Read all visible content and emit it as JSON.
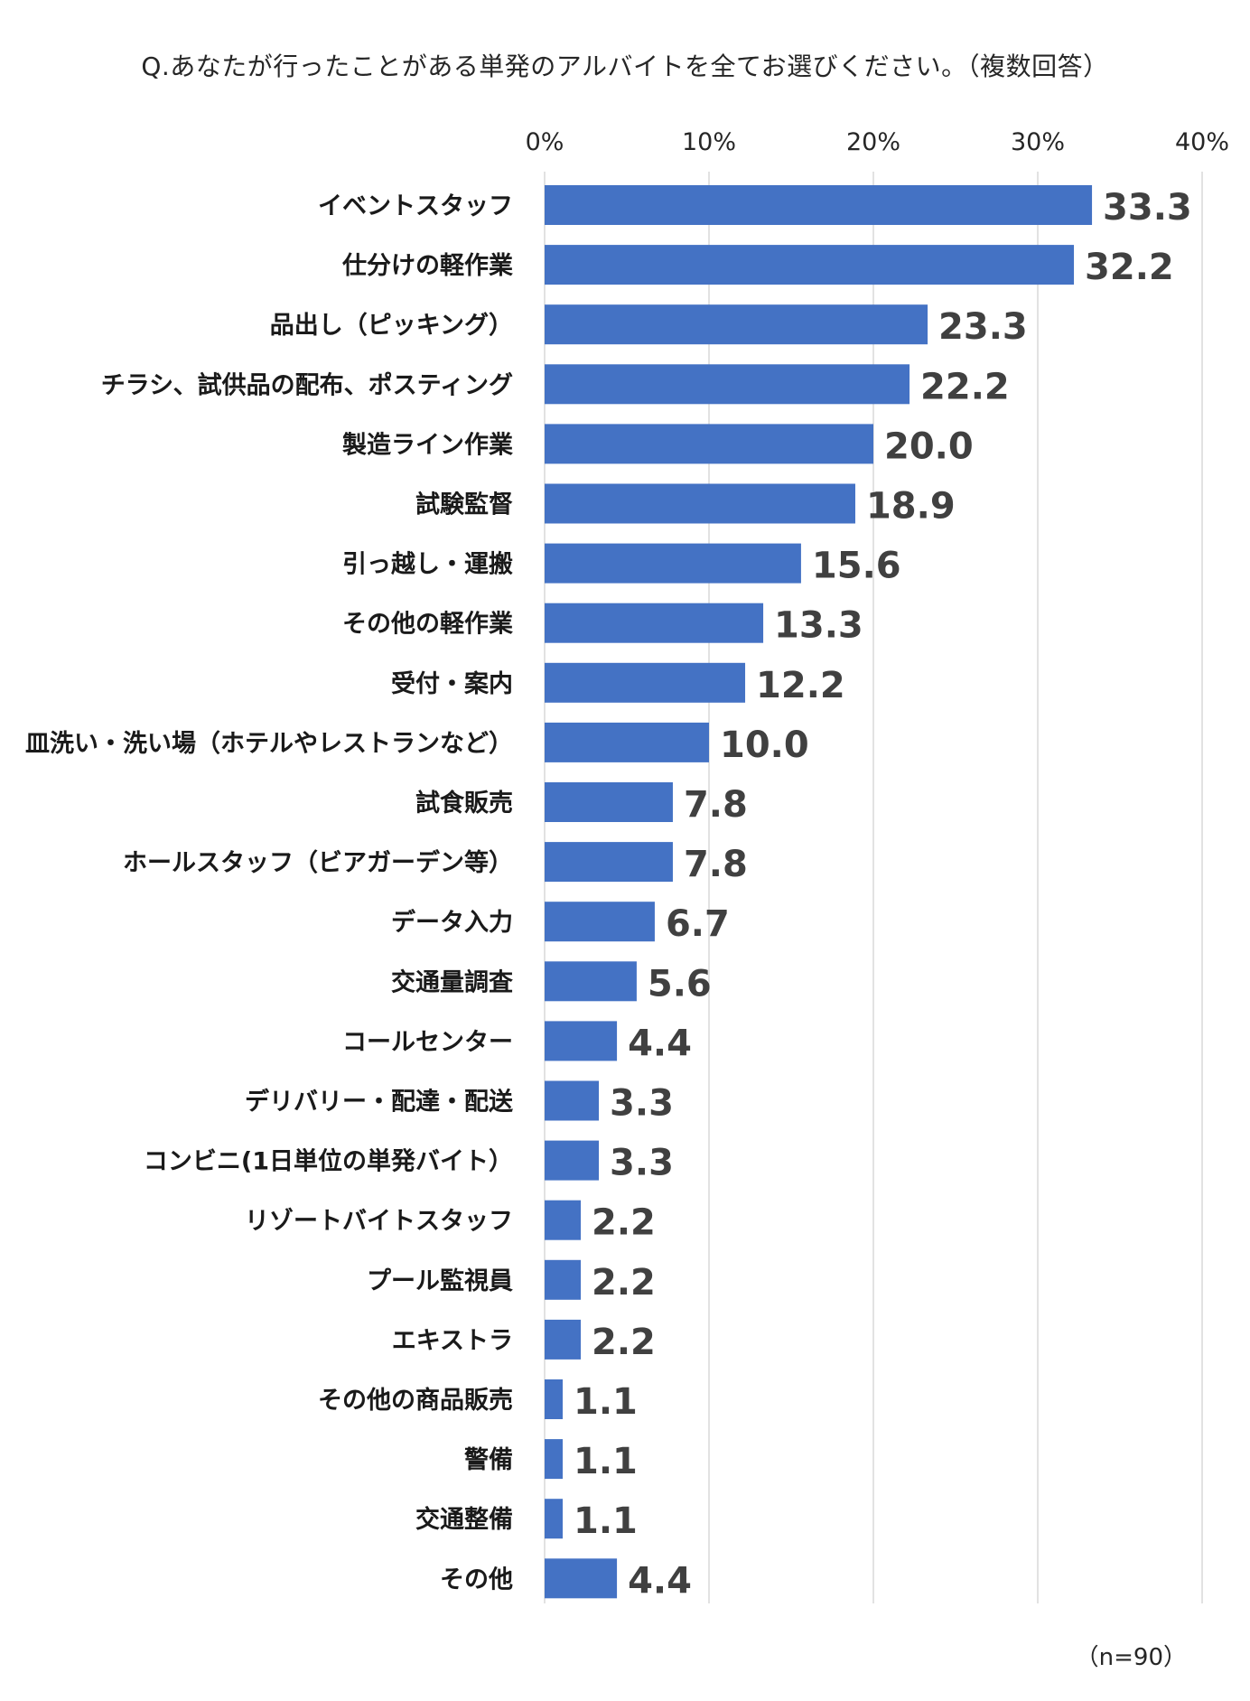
{
  "chart_data": {
    "type": "bar",
    "orientation": "horizontal",
    "title": "Q.あなたが行ったことがある単発のアルバイトを全てお選びください。（複数回答）",
    "note": "（n=90）",
    "xlim": [
      0,
      40
    ],
    "xticks": [
      "0%",
      "10%",
      "20%",
      "30%",
      "40%"
    ],
    "xtick_values": [
      0,
      10,
      20,
      30,
      40
    ],
    "grid": true,
    "bar_color": "#4472C4",
    "categories": [
      "イベントスタッフ",
      "仕分けの軽作業",
      "品出し（ピッキング）",
      "チラシ、試供品の配布、ポスティング",
      "製造ライン作業",
      "試験監督",
      "引っ越し・運搬",
      "その他の軽作業",
      "受付・案内",
      "皿洗い・洗い場（ホテルやレストランなど）",
      "試食販売",
      "ホールスタッフ（ビアガーデン等）",
      "データ入力",
      "交通量調査",
      "コールセンター",
      "デリバリー・配達・配送",
      "コンビニ(1日単位の単発バイト）",
      "リゾートバイトスタッフ",
      "プール監視員",
      "エキストラ",
      "その他の商品販売",
      "警備",
      "交通整備",
      "その他"
    ],
    "values": [
      33.3,
      32.2,
      23.3,
      22.2,
      20.0,
      18.9,
      15.6,
      13.3,
      12.2,
      10.0,
      7.8,
      7.8,
      6.7,
      5.6,
      4.4,
      3.3,
      3.3,
      2.2,
      2.2,
      2.2,
      1.1,
      1.1,
      1.1,
      4.4
    ],
    "value_labels": [
      "33.3",
      "32.2",
      "23.3",
      "22.2",
      "20.0",
      "18.9",
      "15.6",
      "13.3",
      "12.2",
      "10.0",
      "7.8",
      "7.8",
      "6.7",
      "5.6",
      "4.4",
      "3.3",
      "3.3",
      "2.2",
      "2.2",
      "2.2",
      "1.1",
      "1.1",
      "1.1",
      "4.4"
    ]
  }
}
